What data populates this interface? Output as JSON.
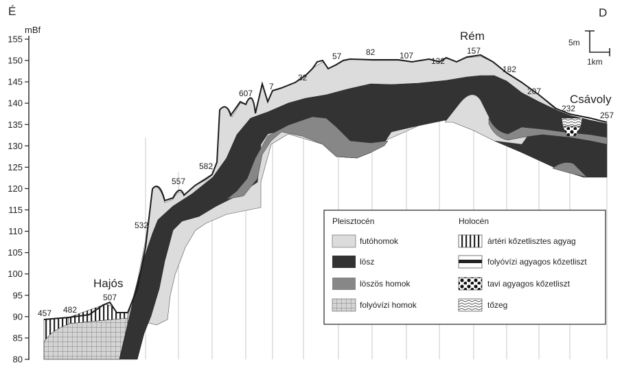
{
  "direction": {
    "left": "É",
    "right": "D"
  },
  "y_axis": {
    "unit": "mBf",
    "min": 80,
    "max": 155,
    "step": 5,
    "ticks": [
      "155",
      "150",
      "145",
      "140",
      "135",
      "130",
      "125",
      "120",
      "115",
      "110",
      "105",
      "100",
      "95",
      "90",
      "85",
      "80"
    ]
  },
  "places": [
    {
      "name": "Hajós"
    },
    {
      "name": "Rém"
    },
    {
      "name": "Csávoly"
    }
  ],
  "boreholes": [
    "457",
    "482",
    "507",
    "532",
    "557",
    "582",
    "607",
    "7",
    "32",
    "57",
    "82",
    "107",
    "132",
    "157",
    "182",
    "207",
    "232",
    "257"
  ],
  "scale": {
    "vertical": "5m",
    "horizontal": "1km"
  },
  "legend": {
    "pleistocene_title": "Pleisztocén",
    "holocene_title": "Holocén",
    "pleistocene": [
      {
        "label": "futóhomok",
        "icon": "futohomok-swatch",
        "color": "#dcdcdc"
      },
      {
        "label": "lösz",
        "icon": "losz-swatch",
        "color": "#333333"
      },
      {
        "label": "löszös homok",
        "icon": "loszos-homok-swatch",
        "color": "#878787"
      },
      {
        "label": "folyóvízi homok",
        "icon": "folyovizi-homok-swatch",
        "color": "#c8c8c8"
      }
    ],
    "holocene": [
      {
        "label": "ártéri kőzetlisztes agyag",
        "icon": "arteri-agyag-swatch"
      },
      {
        "label": "folyóvízi agyagos kőzetliszt",
        "icon": "folyovizi-koezetliszt-swatch"
      },
      {
        "label": "tavi agyagos kőzetliszt",
        "icon": "tavi-koezetliszt-swatch"
      },
      {
        "label": "tőzeg",
        "icon": "tozeg-swatch"
      }
    ]
  },
  "colors": {
    "futohomok": "#dcdcdc",
    "losz": "#333333",
    "loszos_homok": "#878787",
    "folyovizi_homok": "#c8c8c8"
  }
}
